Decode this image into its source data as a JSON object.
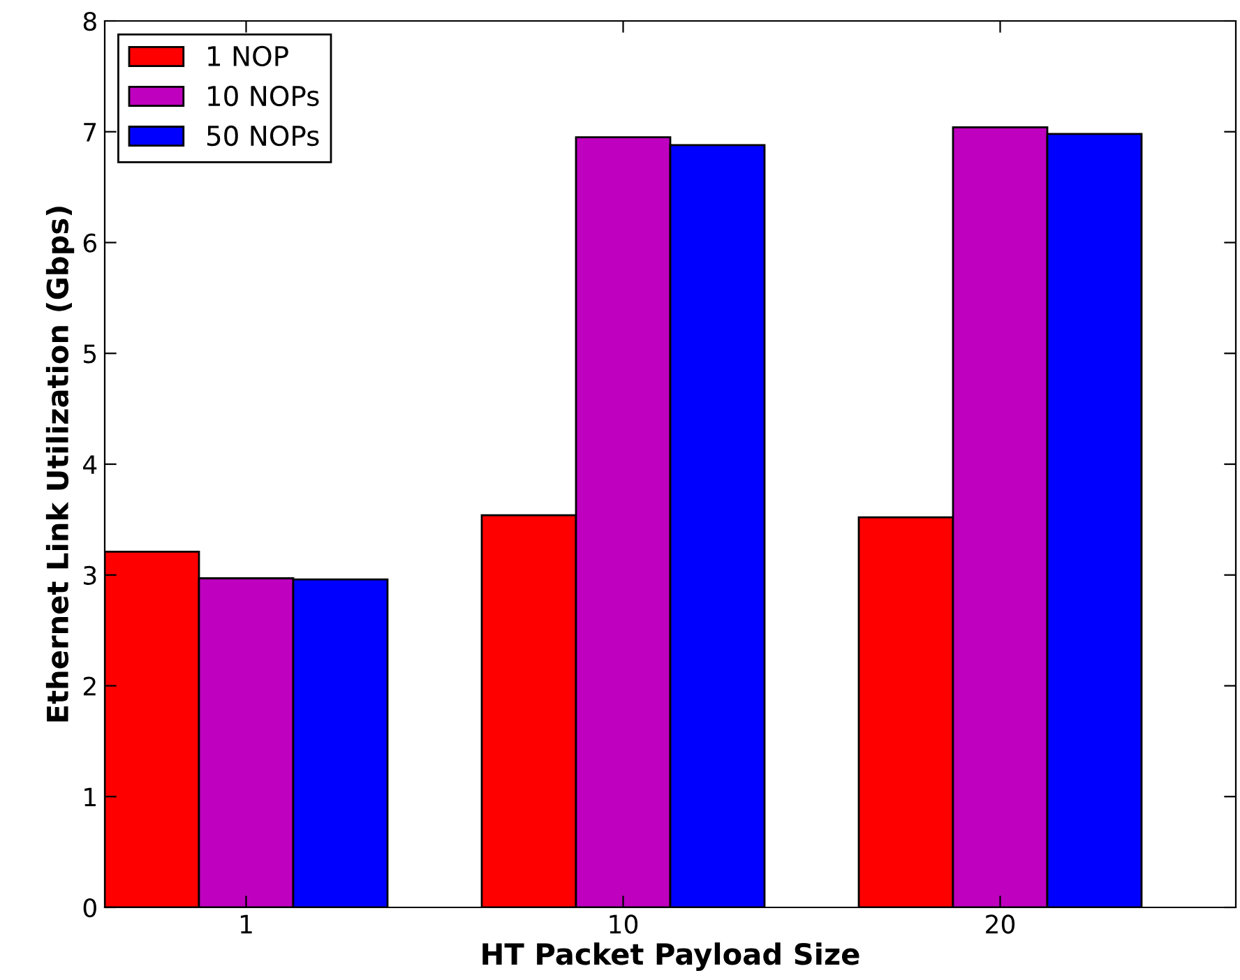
{
  "chart_data": {
    "type": "bar",
    "xlabel": "HT Packet Payload Size",
    "ylabel": "Ethernet Link Utilization (Gbps)",
    "categories": [
      "1",
      "10",
      "20"
    ],
    "series": [
      {
        "name": "1 NOP",
        "color": "#ff0000",
        "values": [
          3.21,
          3.54,
          3.52
        ]
      },
      {
        "name": "10 NOPs",
        "color": "#bf00bf",
        "values": [
          2.97,
          6.95,
          7.04
        ]
      },
      {
        "name": "50 NOPs",
        "color": "#0000ff",
        "values": [
          2.96,
          6.88,
          6.98
        ]
      }
    ],
    "ylim": [
      0,
      8
    ],
    "yticks": [
      0,
      1,
      2,
      3,
      4,
      5,
      6,
      7,
      8
    ],
    "grid": false,
    "legend": "top left"
  }
}
